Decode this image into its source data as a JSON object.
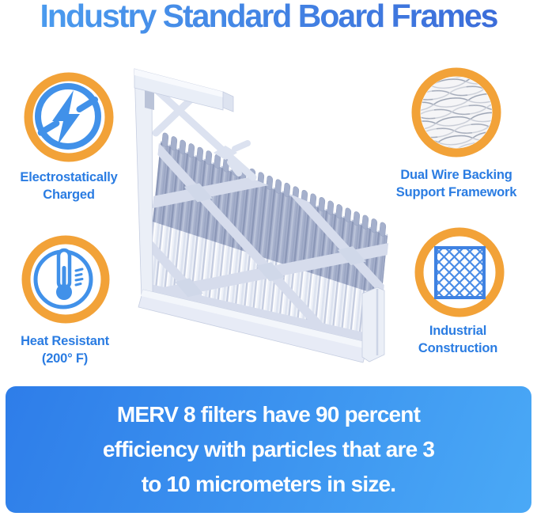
{
  "title": "Industry Standard Board Frames",
  "features": [
    {
      "name": "electrostatically-charged",
      "icon": "lightning-circle-icon",
      "lines": [
        "Electrostatically",
        "Charged"
      ]
    },
    {
      "name": "dual-wire-backing",
      "icon": "wire-mesh-icon",
      "lines": [
        "Dual Wire Backing",
        "Support Framework"
      ]
    },
    {
      "name": "heat-resistant",
      "icon": "thermometer-icon",
      "lines": [
        "Heat Resistant",
        "(200° F)"
      ]
    },
    {
      "name": "industrial-construction",
      "icon": "diamond-lattice-icon",
      "lines": [
        "Industrial",
        "Construction"
      ]
    }
  ],
  "banner": {
    "lines": [
      "MERV 8 filters have 90 percent",
      "efficiency with particles that are 3",
      "to 10 micrometers in size."
    ]
  },
  "product_image": "pleated-air-filter-board-frame-render",
  "colors": {
    "title_gradient_start": "#4C9FF0",
    "title_gradient_end": "#3A69D8",
    "label_blue": "#2A7CE2",
    "icon_ring_orange": "#F2A238",
    "icon_blue": "#4191E9",
    "banner_gradient_start": "#2E7DE9",
    "banner_gradient_end": "#4AA9F6",
    "banner_text": "#FFFFFF",
    "filter_pleat_gray": "#A6B0CC",
    "filter_frame_light": "#E9EDF6"
  }
}
